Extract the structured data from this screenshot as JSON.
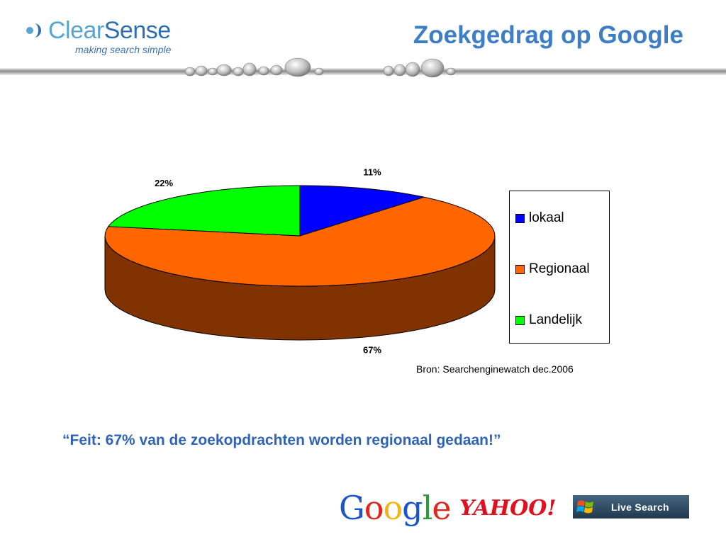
{
  "header": {
    "logo_clear": "Clear",
    "logo_sense": "Sense",
    "tagline": "making search simple",
    "title": "Zoekgedrag op Google"
  },
  "chart_data": {
    "type": "pie",
    "categories": [
      "lokaal",
      "Regionaal",
      "Landelijk"
    ],
    "values": [
      11,
      67,
      22
    ],
    "labels": [
      "11%",
      "67%",
      "22%"
    ],
    "colors": [
      "#0000ff",
      "#ff6600",
      "#00ff00"
    ],
    "side_colors": [
      "#000080",
      "#803300",
      "#008000"
    ],
    "three_d": true,
    "legend_position": "right"
  },
  "legend": {
    "items": [
      {
        "label": "lokaal",
        "color": "#0000ff"
      },
      {
        "label": "Regionaal",
        "color": "#ff6600"
      },
      {
        "label": "Landelijk",
        "color": "#00ff00"
      }
    ]
  },
  "source": "Bron: Searchenginewatch dec.2006",
  "quote": "“Feit: 67% van de zoekopdrachten worden regionaal gedaan!”",
  "logos": {
    "google": "Google",
    "yahoo": "YAHOO!",
    "live": "Live Search"
  }
}
